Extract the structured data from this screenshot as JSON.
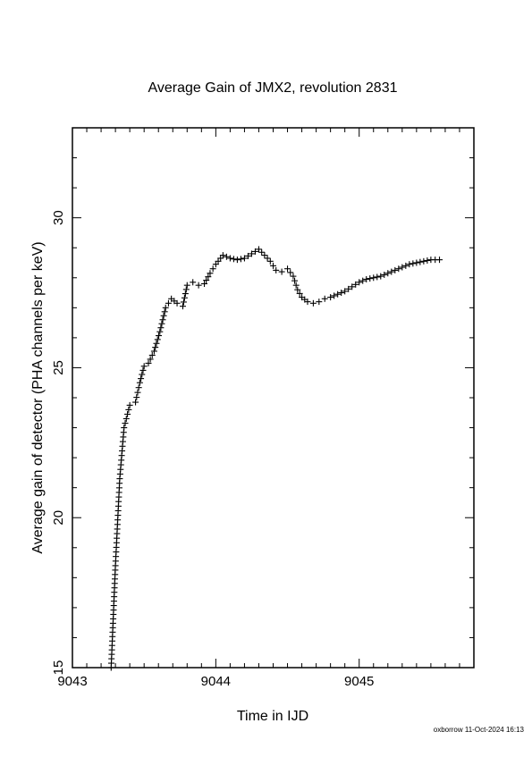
{
  "chart_data": {
    "type": "scatter",
    "title": "Average Gain of JMX2, revolution 2831",
    "xlabel": "Time in IJD",
    "ylabel": "Average gain of detector (PHA channels per keV)",
    "xlim": [
      9043.0,
      9045.8
    ],
    "ylim": [
      15,
      33
    ],
    "xticks": [
      9043,
      9044,
      9045
    ],
    "xtick_labels": [
      "9043",
      "9044",
      "9045"
    ],
    "yticks": [
      15,
      20,
      25,
      30
    ],
    "ytick_labels": [
      "15",
      "20",
      "25",
      "30"
    ],
    "marker": "plus",
    "grid": false,
    "series": [
      {
        "x": [
          9043.27,
          9043.3,
          9043.33,
          9043.36,
          9043.4,
          9043.44,
          9043.47,
          9043.5,
          9043.53,
          9043.57,
          9043.61,
          9043.65,
          9043.69,
          9043.73,
          9043.77,
          9043.8,
          9043.84,
          9043.88,
          9043.92,
          9043.96,
          9044.0,
          9044.05,
          9044.1,
          9044.15,
          9044.2,
          9044.25,
          9044.3,
          9044.34,
          9044.38,
          9044.42,
          9044.46,
          9044.5,
          9044.54,
          9044.57,
          9044.6,
          9044.64,
          9044.68,
          9044.72,
          9044.76,
          9044.8,
          9044.85,
          9044.9,
          9044.95,
          9045.0,
          9045.05,
          9045.1,
          9045.15,
          9045.2,
          9045.25,
          9045.3,
          9045.35,
          9045.4,
          9045.45,
          9045.5,
          9045.56
        ],
        "y": [
          15.0,
          18.4,
          21.3,
          23.0,
          23.75,
          23.85,
          24.5,
          25.05,
          25.15,
          25.55,
          26.2,
          27.0,
          27.3,
          27.15,
          27.05,
          27.75,
          27.85,
          27.75,
          27.8,
          28.15,
          28.45,
          28.75,
          28.65,
          28.6,
          28.65,
          28.8,
          28.95,
          28.75,
          28.55,
          28.25,
          28.2,
          28.3,
          28.05,
          27.6,
          27.35,
          27.2,
          27.15,
          27.2,
          27.3,
          27.35,
          27.45,
          27.55,
          27.7,
          27.85,
          27.95,
          28.0,
          28.05,
          28.15,
          28.25,
          28.35,
          28.45,
          28.5,
          28.55,
          28.6,
          28.6
        ]
      }
    ]
  },
  "footer": {
    "stamp": "oxborrow 11-Oct-2024 16:13"
  }
}
